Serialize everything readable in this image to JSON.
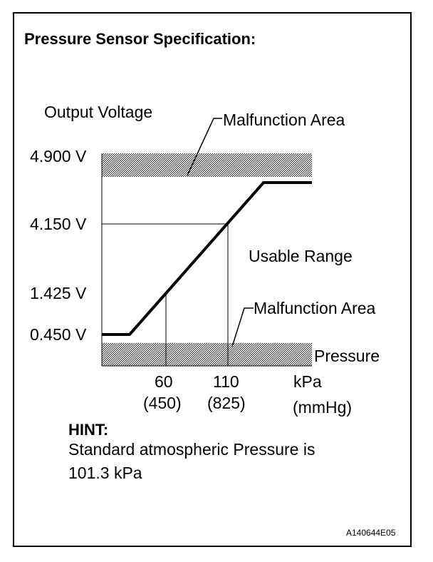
{
  "title": "Pressure Sensor Specification:",
  "y_axis_label": "Output Voltage",
  "x_axis_label": "Pressure",
  "x_units": [
    "kPa",
    "(mmHg)"
  ],
  "annotations": {
    "upper_malfunction": "Malfunction Area",
    "lower_malfunction": "Malfunction Area",
    "usable_range": "Usable Range"
  },
  "y_ticks": [
    "4.900 V",
    "4.150 V",
    "1.425 V",
    "0.450 V"
  ],
  "x_ticks": [
    {
      "kpa": "60",
      "mmhg": "(450)"
    },
    {
      "kpa": "110",
      "mmhg": "(825)"
    }
  ],
  "hint": {
    "heading": "HINT:",
    "line1": "Standard atmospheric Pressure is",
    "line2": "101.3 kPa"
  },
  "figure_id": "A140644E05",
  "chart_data": {
    "type": "line",
    "xlabel": "Pressure",
    "ylabel": "Output Voltage",
    "reference_points": [
      {
        "x_kpa": 60,
        "x_mmhg": 450,
        "y_v": 1.425
      },
      {
        "x_kpa": 110,
        "x_mmhg": 825,
        "y_v": 4.15
      }
    ],
    "lower_clamp_v": 0.45,
    "upper_malfunction_threshold_v": 4.9
  }
}
